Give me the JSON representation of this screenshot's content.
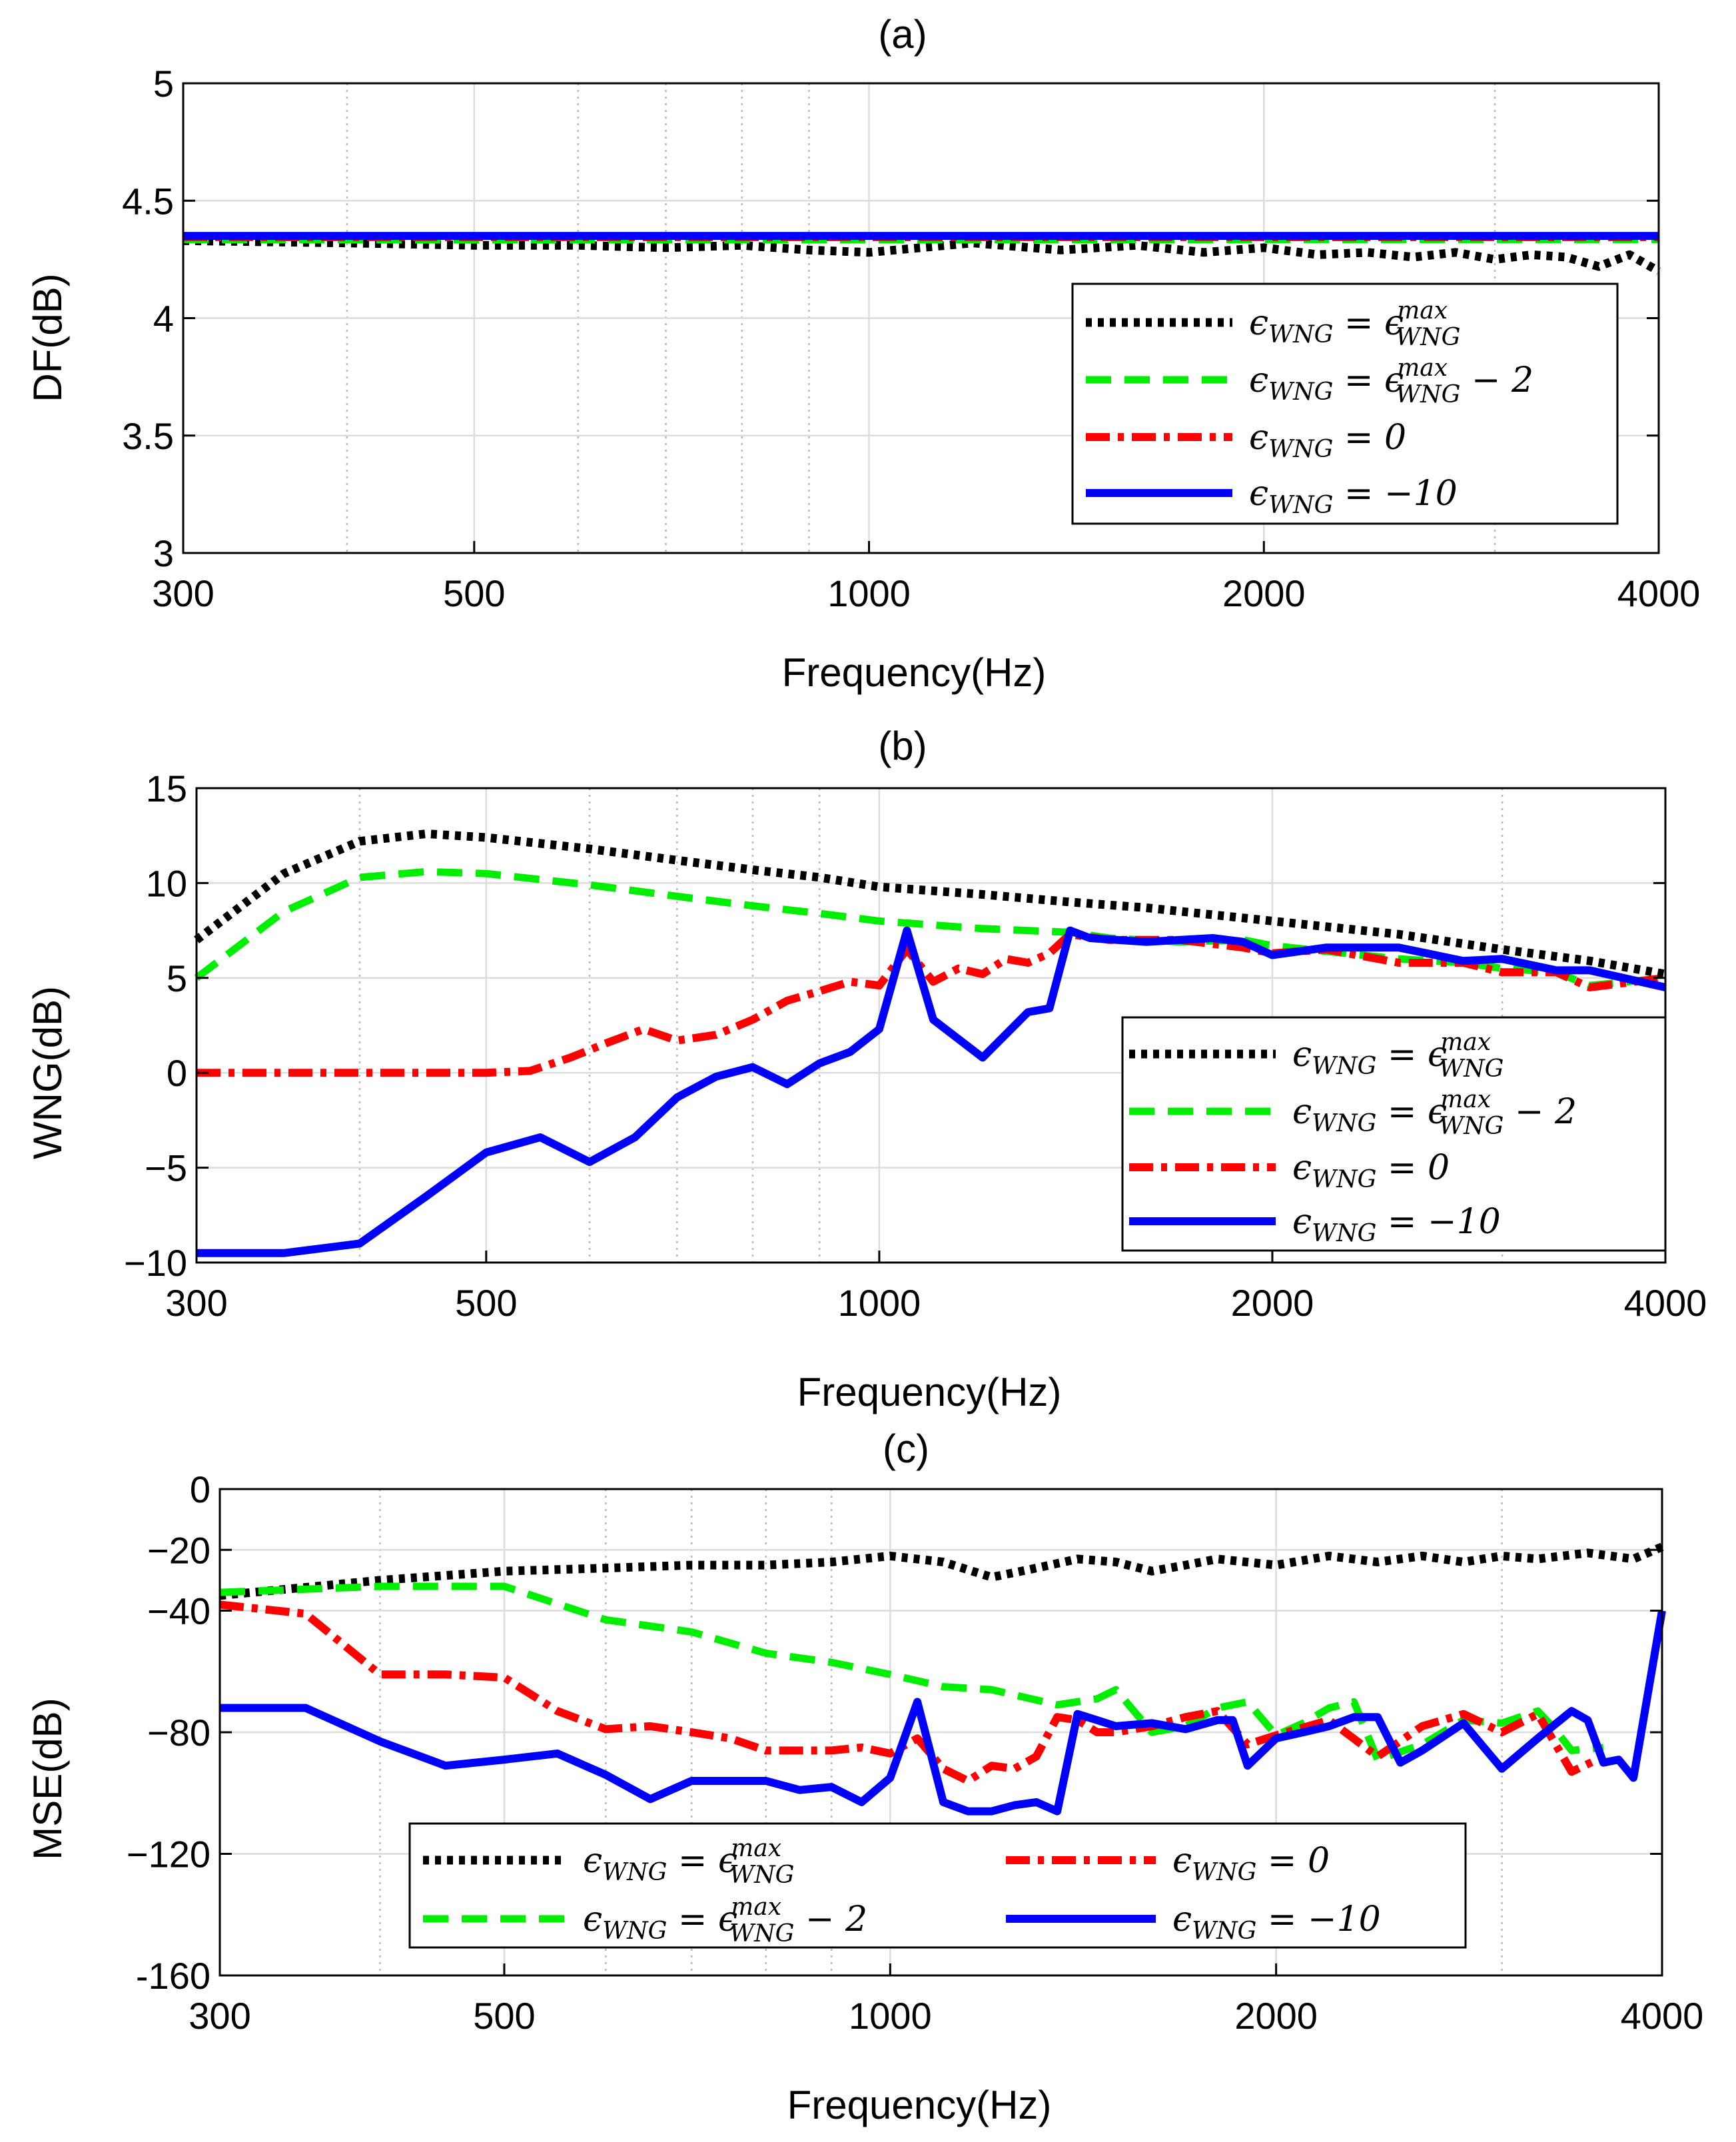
{
  "chart_data": [
    {
      "type": "line",
      "title": "(a)",
      "xlabel": "Frequency(Hz)",
      "ylabel": "DF(dB)",
      "xscale": "log",
      "xlim": [
        300,
        4000
      ],
      "ylim": [
        3,
        5
      ],
      "xticks": [
        300,
        500,
        1000,
        2000,
        4000
      ],
      "yticks": [
        3,
        3.5,
        4,
        4.5,
        5
      ],
      "ytick_labels": [
        "3",
        "3.5",
        "4",
        "4.5",
        "5"
      ],
      "grid": true,
      "legend_position": "inside-lower-right",
      "series": [
        {
          "name": "εWNG = εWNGmax",
          "style": "dotted",
          "color": "#000000",
          "x": [
            300,
            400,
            500,
            600,
            700,
            800,
            900,
            1000,
            1200,
            1400,
            1600,
            1800,
            2000,
            2200,
            2400,
            2600,
            2800,
            3000,
            3200,
            3400,
            3600,
            3800,
            4000
          ],
          "y": [
            4.33,
            4.32,
            4.31,
            4.31,
            4.3,
            4.31,
            4.29,
            4.28,
            4.32,
            4.29,
            4.31,
            4.28,
            4.3,
            4.27,
            4.28,
            4.26,
            4.28,
            4.25,
            4.27,
            4.26,
            4.22,
            4.27,
            4.2
          ]
        },
        {
          "name": "εWNG = εWNGmax − 2",
          "style": "dashed",
          "color": "#00ee00",
          "x": [
            300,
            500,
            700,
            1000,
            2000,
            4000
          ],
          "y": [
            4.335,
            4.333,
            4.334,
            4.334,
            4.335,
            4.335
          ]
        },
        {
          "name": "εWNG = 0",
          "style": "dashdot",
          "color": "#ff0000",
          "x": [
            300,
            500,
            700,
            1000,
            2000,
            4000
          ],
          "y": [
            4.345,
            4.345,
            4.345,
            4.345,
            4.345,
            4.345
          ]
        },
        {
          "name": "εWNG = −10",
          "style": "solid",
          "color": "#0000ff",
          "x": [
            300,
            500,
            700,
            1000,
            2000,
            4000
          ],
          "y": [
            4.35,
            4.35,
            4.35,
            4.35,
            4.35,
            4.35
          ]
        }
      ]
    },
    {
      "type": "line",
      "title": "(b)",
      "xlabel": "Frequency(Hz)",
      "ylabel": "WNG(dB)",
      "xscale": "log",
      "xlim": [
        300,
        4000
      ],
      "ylim": [
        -10,
        15
      ],
      "xticks": [
        300,
        500,
        1000,
        2000,
        4000
      ],
      "yticks": [
        -10,
        -5,
        0,
        5,
        10,
        15
      ],
      "ytick_labels": [
        "−10",
        "−5",
        "0",
        "5",
        "10",
        "15"
      ],
      "grid": true,
      "legend_position": "inside-lower-right",
      "series": [
        {
          "name": "εWNG = εWNGmax",
          "style": "dotted",
          "color": "#000000",
          "x": [
            300,
            350,
            400,
            450,
            500,
            600,
            700,
            800,
            900,
            1000,
            1200,
            1400,
            1600,
            2000,
            2500,
            3000,
            3500,
            4000
          ],
          "y": [
            7,
            10.5,
            12.2,
            12.6,
            12.4,
            11.8,
            11.2,
            10.7,
            10.3,
            9.8,
            9.4,
            9,
            8.7,
            8,
            7.3,
            6.5,
            5.9,
            5.2
          ]
        },
        {
          "name": "εWNG = εWNGmax − 2",
          "style": "dashed",
          "color": "#00ee00",
          "x": [
            300,
            350,
            400,
            450,
            500,
            600,
            700,
            800,
            900,
            1000,
            1200,
            1400,
            1500,
            1700,
            1900,
            2000,
            2200,
            2500,
            2800,
            3000,
            3300,
            3500,
            4000
          ],
          "y": [
            5,
            8.5,
            10.3,
            10.6,
            10.5,
            9.9,
            9.3,
            8.8,
            8.4,
            8,
            7.6,
            7.4,
            7.1,
            6.9,
            7,
            6.7,
            6.4,
            6,
            5.8,
            5.5,
            5.3,
            4.6,
            5
          ]
        },
        {
          "name": "εWNG = 0",
          "style": "dashdot",
          "color": "#ff0000",
          "x": [
            300,
            400,
            450,
            500,
            540,
            580,
            620,
            660,
            700,
            750,
            800,
            850,
            900,
            950,
            1000,
            1050,
            1100,
            1150,
            1200,
            1250,
            1300,
            1350,
            1400,
            1500,
            1700,
            1900,
            2000,
            2200,
            2500,
            2800,
            3000,
            3300,
            3500,
            4000
          ],
          "y": [
            0,
            0,
            0,
            0,
            0.1,
            0.8,
            1.6,
            2.3,
            1.7,
            2,
            2.8,
            3.8,
            4.3,
            4.8,
            4.6,
            6.5,
            4.8,
            5.5,
            5.2,
            6,
            5.8,
            6.3,
            7.3,
            7,
            7,
            6.6,
            6.3,
            6.5,
            5.8,
            5.8,
            5.3,
            5.3,
            4.5,
            5
          ]
        },
        {
          "name": "εWNG = −10",
          "style": "solid",
          "color": "#0000ff",
          "x": [
            300,
            350,
            400,
            450,
            500,
            550,
            600,
            650,
            700,
            750,
            800,
            850,
            900,
            950,
            1000,
            1050,
            1100,
            1200,
            1300,
            1350,
            1400,
            1450,
            1600,
            1700,
            1800,
            1900,
            2000,
            2200,
            2500,
            2800,
            3000,
            3300,
            3500,
            4000
          ],
          "y": [
            -9.5,
            -9.5,
            -9,
            -6.5,
            -4.2,
            -3.4,
            -4.7,
            -3.4,
            -1.3,
            -0.2,
            0.3,
            -0.6,
            0.5,
            1.1,
            2.3,
            7.5,
            2.8,
            0.8,
            3.2,
            3.4,
            7.5,
            7.1,
            6.9,
            7,
            7.1,
            6.9,
            6.2,
            6.6,
            6.6,
            5.9,
            6,
            5.4,
            5.4,
            4.5
          ]
        }
      ]
    },
    {
      "type": "line",
      "title": "(c)",
      "xlabel": "Frequency(Hz)",
      "ylabel": "MSE(dB)",
      "xscale": "log",
      "xlim": [
        300,
        4000
      ],
      "ylim": [
        -160,
        0
      ],
      "xticks": [
        300,
        500,
        1000,
        2000,
        4000
      ],
      "yticks": [
        -160,
        -120,
        -80,
        -40,
        -20,
        0
      ],
      "ytick_labels": [
        "-160",
        "−120",
        "−80",
        "−40",
        "−20",
        "0"
      ],
      "grid": true,
      "legend_position": "inside-lower-center",
      "series": [
        {
          "name": "εWNG = εWNGmax",
          "style": "dotted",
          "color": "#000000",
          "x": [
            300,
            400,
            500,
            600,
            700,
            800,
            900,
            1000,
            1100,
            1200,
            1300,
            1400,
            1500,
            1600,
            1700,
            1800,
            2000,
            2200,
            2400,
            2600,
            2800,
            3000,
            3200,
            3500,
            3800,
            4000
          ],
          "y": [
            -35,
            -30,
            -27,
            -26,
            -25,
            -25,
            -24,
            -22,
            -24,
            -29,
            -26,
            -23,
            -24,
            -27,
            -25,
            -23,
            -25,
            -22,
            -24,
            -22,
            -24,
            -22,
            -23,
            -21,
            -23,
            -19
          ]
        },
        {
          "name": "εWNG = εWNGmax − 2",
          "style": "dashed",
          "color": "#00ee00",
          "x": [
            300,
            400,
            500,
            600,
            700,
            800,
            900,
            1000,
            1100,
            1200,
            1350,
            1450,
            1500,
            1600,
            1700,
            1800,
            1900,
            2000,
            2100,
            2200,
            2300,
            2400,
            2600,
            2800,
            3000,
            3200,
            3300,
            3400,
            3600
          ],
          "y": [
            -34,
            -32,
            -32,
            -43,
            -47,
            -54,
            -57,
            -61,
            -65,
            -66,
            -71,
            -69,
            -66,
            -80,
            -78,
            -72,
            -70,
            -81,
            -77,
            -72,
            -70,
            -89,
            -84,
            -76,
            -77,
            -73,
            -79,
            -86,
            -85
          ]
        },
        {
          "name": "εWNG = 0",
          "style": "dashdot",
          "color": "#ff0000",
          "x": [
            300,
            350,
            400,
            450,
            500,
            550,
            600,
            650,
            700,
            750,
            800,
            850,
            900,
            950,
            1000,
            1050,
            1100,
            1150,
            1200,
            1250,
            1300,
            1350,
            1400,
            1450,
            1500,
            1600,
            1700,
            1800,
            1900,
            2000,
            2200,
            2400,
            2600,
            2800,
            3000,
            3200,
            3400,
            3600
          ],
          "y": [
            -38,
            -41,
            -61,
            -61,
            -62,
            -73,
            -79,
            -78,
            -80,
            -82,
            -86,
            -86,
            -86,
            -85,
            -87,
            -82,
            -92,
            -96,
            -91,
            -92,
            -88,
            -75,
            -76,
            -80,
            -80,
            -78,
            -75,
            -73,
            -84,
            -81,
            -76,
            -88,
            -78,
            -74,
            -80,
            -74,
            -93,
            -88
          ]
        },
        {
          "name": "εWNG = −10",
          "style": "solid",
          "color": "#0000ff",
          "x": [
            300,
            350,
            400,
            450,
            500,
            550,
            600,
            650,
            700,
            750,
            800,
            850,
            900,
            950,
            1000,
            1050,
            1100,
            1150,
            1200,
            1250,
            1300,
            1350,
            1400,
            1450,
            1500,
            1600,
            1700,
            1800,
            1850,
            1900,
            2000,
            2100,
            2200,
            2300,
            2400,
            2500,
            2600,
            2800,
            3000,
            3200,
            3400,
            3500,
            3600,
            3700,
            3800,
            4000
          ],
          "y": [
            -72,
            -72,
            -83,
            -91,
            -89,
            -87,
            -94,
            -102,
            -96,
            -96,
            -96,
            -99,
            -98,
            -103,
            -95,
            -70,
            -103,
            -106,
            -106,
            -104,
            -103,
            -106,
            -74,
            -76,
            -78,
            -77,
            -79,
            -76,
            -76,
            -91,
            -82,
            -80,
            -78,
            -75,
            -75,
            -90,
            -86,
            -77,
            -92,
            -82,
            -73,
            -76,
            -90,
            -89,
            -95,
            -40
          ]
        }
      ]
    }
  ]
}
